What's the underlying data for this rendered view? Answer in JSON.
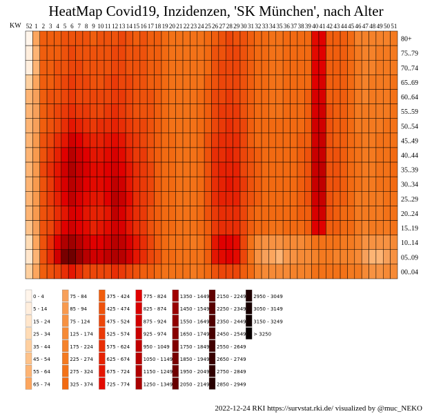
{
  "chart_data": {
    "type": "heatmap",
    "title": "HeatMap Covid19, Inzidenzen, 'SK München', nach Alter",
    "x_axis_label": "KW",
    "x_categories": [
      "52",
      "1",
      "2",
      "3",
      "4",
      "5",
      "6",
      "7",
      "8",
      "9",
      "10",
      "11",
      "12",
      "13",
      "14",
      "15",
      "16",
      "17",
      "18",
      "19",
      "20",
      "21",
      "22",
      "23",
      "24",
      "25",
      "26",
      "27",
      "28",
      "29",
      "30",
      "31",
      "32",
      "33",
      "34",
      "35",
      "36",
      "37",
      "38",
      "39",
      "40",
      "41",
      "42",
      "43",
      "44",
      "45",
      "46",
      "47",
      "48",
      "49",
      "50",
      "51"
    ],
    "x_tick_labels_shown": [
      "52",
      "1",
      "2",
      "3",
      "4",
      "5",
      "6",
      "7",
      "8",
      "9",
      "10",
      "11",
      "12",
      "13",
      "14",
      "15",
      "16",
      "17",
      "18",
      "19",
      "20",
      "21",
      "22",
      "23",
      "24",
      "25",
      "26",
      "27",
      "28",
      "29",
      "30",
      "31",
      "32",
      "33",
      "34",
      "35",
      "36",
      "37",
      "38",
      "39",
      "40",
      "41",
      "42",
      "43",
      "44",
      "45",
      "46",
      "47",
      "48",
      "49",
      "50",
      "51"
    ],
    "y_categories": [
      "80+",
      "75..79",
      "70..74",
      "65..69",
      "60..64",
      "55..59",
      "50..54",
      "45..49",
      "40..44",
      "35..39",
      "30..34",
      "25..29",
      "20..24",
      "15..19",
      "10..14",
      "05..09",
      "00..04"
    ],
    "legend_bins": [
      {
        "label": "0 - 4",
        "color": "#fff5eb"
      },
      {
        "label": "5 - 14",
        "color": "#ffeedd"
      },
      {
        "label": "15 - 24",
        "color": "#ffe6cc"
      },
      {
        "label": "25 - 34",
        "color": "#ffdcb6"
      },
      {
        "label": "35 - 44",
        "color": "#fed0a0"
      },
      {
        "label": "45 - 54",
        "color": "#fdc28a"
      },
      {
        "label": "55 - 64",
        "color": "#fdb474"
      },
      {
        "label": "65 - 74",
        "color": "#fca65e"
      },
      {
        "label": "75 - 84",
        "color": "#f7a05a"
      },
      {
        "label": "85 - 94",
        "color": "#f89a4e"
      },
      {
        "label": "75 - 124",
        "color": "#f79242"
      },
      {
        "label": "125 - 174",
        "color": "#f68a36"
      },
      {
        "label": "175 - 224",
        "color": "#f5822a"
      },
      {
        "label": "225 - 274",
        "color": "#f47a20"
      },
      {
        "label": "275 - 324",
        "color": "#f37218"
      },
      {
        "label": "325 - 374",
        "color": "#f26a12"
      },
      {
        "label": "375 - 424",
        "color": "#f05e0e"
      },
      {
        "label": "425 - 474",
        "color": "#ee520c"
      },
      {
        "label": "475 - 524",
        "color": "#ec460a"
      },
      {
        "label": "525 - 574",
        "color": "#ea3a08"
      },
      {
        "label": "575 - 624",
        "color": "#e82e06"
      },
      {
        "label": "625 - 674",
        "color": "#e62204"
      },
      {
        "label": "675 - 724",
        "color": "#e41602"
      },
      {
        "label": "725 - 774",
        "color": "#e20a00"
      },
      {
        "label": "775 - 824",
        "color": "#e00000"
      },
      {
        "label": "825 - 874",
        "color": "#d80000"
      },
      {
        "label": "875 - 924",
        "color": "#d00000"
      },
      {
        "label": "925 - 974",
        "color": "#c80000"
      },
      {
        "label": "950 - 1049",
        "color": "#c00000"
      },
      {
        "label": "1050 - 1149",
        "color": "#b80000"
      },
      {
        "label": "1150 - 1249",
        "color": "#b00000"
      },
      {
        "label": "1250 - 1349",
        "color": "#a80000"
      },
      {
        "label": "1350 - 1449",
        "color": "#a00000"
      },
      {
        "label": "1450 - 1549",
        "color": "#980000"
      },
      {
        "label": "1550 - 1649",
        "color": "#900000"
      },
      {
        "label": "1650 - 1749",
        "color": "#880000"
      },
      {
        "label": "1750 - 1849",
        "color": "#800000"
      },
      {
        "label": "1850 - 1949",
        "color": "#780000"
      },
      {
        "label": "1950 - 2049",
        "color": "#700000"
      },
      {
        "label": "2050 - 2149",
        "color": "#680000"
      },
      {
        "label": "2150 - 2249",
        "color": "#600000"
      },
      {
        "label": "2250 - 2349",
        "color": "#580000"
      },
      {
        "label": "2350 - 2449",
        "color": "#500000"
      },
      {
        "label": "2450 - 2549",
        "color": "#480000"
      },
      {
        "label": "2550 - 2649",
        "color": "#400000"
      },
      {
        "label": "2650 - 2749",
        "color": "#380000"
      },
      {
        "label": "2750 - 2849",
        "color": "#300000"
      },
      {
        "label": "2850 - 2949",
        "color": "#280000"
      },
      {
        "label": "2950 - 3049",
        "color": "#200000"
      },
      {
        "label": "3050 - 3149",
        "color": "#180000"
      },
      {
        "label": "3150 - 3249",
        "color": "#100000"
      },
      {
        "label": "> 3250",
        "color": "#080000"
      }
    ],
    "values": [
      [
        3,
        70,
        380,
        390,
        420,
        440,
        470,
        440,
        430,
        420,
        430,
        440,
        470,
        480,
        440,
        420,
        440,
        420,
        380,
        340,
        320,
        300,
        300,
        290,
        320,
        340,
        420,
        440,
        480,
        470,
        440,
        380,
        340,
        330,
        320,
        320,
        330,
        330,
        350,
        360,
        760,
        780,
        420,
        400,
        380,
        340,
        200,
        180,
        200,
        200,
        210,
        250
      ],
      [
        10,
        60,
        380,
        410,
        420,
        460,
        520,
        470,
        460,
        440,
        460,
        460,
        520,
        500,
        470,
        440,
        440,
        420,
        380,
        340,
        320,
        300,
        300,
        290,
        320,
        360,
        440,
        470,
        500,
        480,
        440,
        380,
        340,
        330,
        320,
        320,
        330,
        330,
        350,
        360,
        760,
        800,
        420,
        400,
        380,
        340,
        230,
        200,
        220,
        230,
        240,
        270
      ],
      [
        10,
        60,
        380,
        410,
        430,
        460,
        520,
        480,
        470,
        440,
        460,
        470,
        520,
        500,
        470,
        440,
        440,
        420,
        380,
        340,
        320,
        300,
        300,
        290,
        320,
        360,
        440,
        480,
        510,
        490,
        440,
        380,
        340,
        330,
        320,
        320,
        330,
        330,
        350,
        360,
        800,
        820,
        420,
        400,
        380,
        340,
        230,
        200,
        220,
        230,
        240,
        270
      ],
      [
        40,
        70,
        380,
        420,
        440,
        480,
        540,
        490,
        480,
        460,
        470,
        490,
        540,
        520,
        480,
        450,
        450,
        420,
        380,
        340,
        320,
        300,
        300,
        290,
        320,
        380,
        460,
        500,
        520,
        500,
        440,
        390,
        340,
        330,
        320,
        320,
        330,
        330,
        350,
        370,
        820,
        840,
        420,
        400,
        380,
        340,
        240,
        210,
        230,
        240,
        250,
        280
      ],
      [
        60,
        80,
        390,
        430,
        460,
        500,
        560,
        520,
        500,
        480,
        490,
        510,
        560,
        540,
        500,
        460,
        450,
        430,
        390,
        340,
        320,
        300,
        300,
        290,
        330,
        400,
        480,
        520,
        540,
        520,
        460,
        390,
        340,
        330,
        320,
        320,
        330,
        340,
        360,
        380,
        840,
        860,
        420,
        400,
        380,
        340,
        250,
        220,
        240,
        250,
        260,
        290
      ],
      [
        60,
        80,
        400,
        440,
        480,
        540,
        620,
        560,
        540,
        500,
        520,
        540,
        600,
        570,
        520,
        470,
        460,
        430,
        390,
        340,
        320,
        300,
        300,
        290,
        330,
        400,
        500,
        540,
        560,
        540,
        470,
        400,
        350,
        330,
        320,
        320,
        340,
        350,
        370,
        390,
        860,
        880,
        430,
        400,
        380,
        350,
        260,
        230,
        250,
        260,
        270,
        300
      ],
      [
        60,
        80,
        420,
        470,
        520,
        600,
        700,
        640,
        600,
        560,
        580,
        600,
        660,
        620,
        560,
        500,
        480,
        440,
        400,
        350,
        320,
        300,
        300,
        290,
        340,
        420,
        520,
        560,
        580,
        560,
        480,
        410,
        360,
        340,
        330,
        330,
        340,
        350,
        370,
        400,
        880,
        900,
        440,
        410,
        380,
        350,
        270,
        240,
        260,
        270,
        280,
        310
      ],
      [
        60,
        90,
        450,
        520,
        600,
        720,
        900,
        780,
        700,
        640,
        660,
        700,
        760,
        700,
        620,
        540,
        510,
        460,
        410,
        360,
        330,
        310,
        300,
        290,
        350,
        440,
        560,
        600,
        620,
        600,
        500,
        420,
        370,
        350,
        340,
        340,
        350,
        360,
        390,
        420,
        920,
        940,
        450,
        420,
        390,
        360,
        280,
        250,
        270,
        280,
        290,
        320
      ],
      [
        60,
        90,
        470,
        560,
        660,
        820,
        1050,
        880,
        780,
        700,
        720,
        760,
        840,
        760,
        660,
        570,
        530,
        470,
        420,
        370,
        340,
        310,
        300,
        290,
        360,
        450,
        580,
        620,
        640,
        620,
        510,
        430,
        380,
        360,
        340,
        340,
        350,
        360,
        400,
        430,
        940,
        960,
        460,
        430,
        390,
        360,
        280,
        250,
        270,
        280,
        300,
        330
      ],
      [
        60,
        90,
        480,
        580,
        700,
        880,
        1150,
        960,
        840,
        740,
        760,
        820,
        920,
        820,
        700,
        590,
        540,
        480,
        420,
        370,
        340,
        310,
        300,
        290,
        360,
        460,
        600,
        640,
        660,
        640,
        520,
        440,
        380,
        360,
        340,
        340,
        350,
        360,
        400,
        440,
        960,
        980,
        470,
        430,
        390,
        360,
        280,
        250,
        270,
        280,
        300,
        330
      ],
      [
        60,
        90,
        470,
        560,
        680,
        840,
        1080,
        940,
        820,
        730,
        750,
        800,
        980,
        880,
        720,
        600,
        550,
        480,
        420,
        370,
        340,
        310,
        300,
        290,
        360,
        460,
        620,
        660,
        680,
        650,
        530,
        440,
        380,
        360,
        340,
        340,
        350,
        360,
        400,
        440,
        960,
        980,
        470,
        430,
        390,
        360,
        280,
        250,
        270,
        280,
        300,
        330
      ],
      [
        60,
        90,
        460,
        540,
        640,
        780,
        980,
        860,
        760,
        690,
        720,
        780,
        1100,
        940,
        760,
        620,
        560,
        490,
        420,
        370,
        340,
        310,
        300,
        290,
        350,
        450,
        600,
        650,
        670,
        640,
        520,
        440,
        380,
        350,
        340,
        340,
        350,
        360,
        390,
        430,
        920,
        940,
        460,
        420,
        380,
        350,
        270,
        240,
        260,
        270,
        290,
        320
      ],
      [
        60,
        90,
        440,
        500,
        600,
        720,
        860,
        780,
        700,
        640,
        660,
        720,
        980,
        860,
        720,
        600,
        540,
        470,
        410,
        360,
        330,
        300,
        290,
        280,
        340,
        430,
        560,
        600,
        620,
        600,
        490,
        420,
        370,
        340,
        330,
        330,
        340,
        350,
        380,
        410,
        860,
        880,
        440,
        410,
        370,
        340,
        260,
        230,
        250,
        260,
        280,
        310
      ],
      [
        50,
        80,
        440,
        520,
        640,
        780,
        900,
        820,
        740,
        670,
        690,
        740,
        920,
        840,
        720,
        600,
        540,
        470,
        410,
        360,
        330,
        300,
        290,
        280,
        330,
        420,
        560,
        600,
        620,
        590,
        480,
        410,
        360,
        330,
        320,
        320,
        330,
        340,
        360,
        390,
        780,
        800,
        420,
        390,
        360,
        330,
        250,
        220,
        240,
        250,
        260,
        290
      ],
      [
        30,
        70,
        460,
        600,
        800,
        1200,
        1400,
        1100,
        900,
        800,
        820,
        900,
        1100,
        1000,
        860,
        700,
        600,
        500,
        420,
        360,
        320,
        290,
        280,
        270,
        320,
        400,
        720,
        780,
        800,
        760,
        500,
        300,
        150,
        120,
        110,
        100,
        130,
        140,
        160,
        180,
        280,
        300,
        300,
        280,
        260,
        250,
        200,
        120,
        100,
        100,
        120,
        140
      ],
      [
        20,
        60,
        460,
        620,
        880,
        1900,
        2000,
        1500,
        1100,
        900,
        900,
        1000,
        1200,
        1100,
        900,
        720,
        620,
        520,
        430,
        370,
        330,
        300,
        290,
        280,
        320,
        400,
        700,
        760,
        780,
        740,
        480,
        280,
        110,
        80,
        70,
        60,
        90,
        110,
        130,
        150,
        220,
        240,
        240,
        220,
        210,
        200,
        160,
        80,
        60,
        60,
        80,
        100
      ],
      [
        40,
        70,
        390,
        440,
        500,
        600,
        700,
        600,
        520,
        480,
        490,
        520,
        580,
        540,
        480,
        430,
        410,
        380,
        350,
        320,
        300,
        290,
        280,
        270,
        300,
        360,
        460,
        500,
        520,
        500,
        420,
        340,
        200,
        160,
        140,
        130,
        160,
        180,
        200,
        220,
        300,
        320,
        320,
        300,
        280,
        270,
        230,
        150,
        120,
        120,
        140,
        160
      ]
    ]
  },
  "footer": "2022-12-24 RKI https://survstat.rki.de/ visualized by @muc_NEKO"
}
